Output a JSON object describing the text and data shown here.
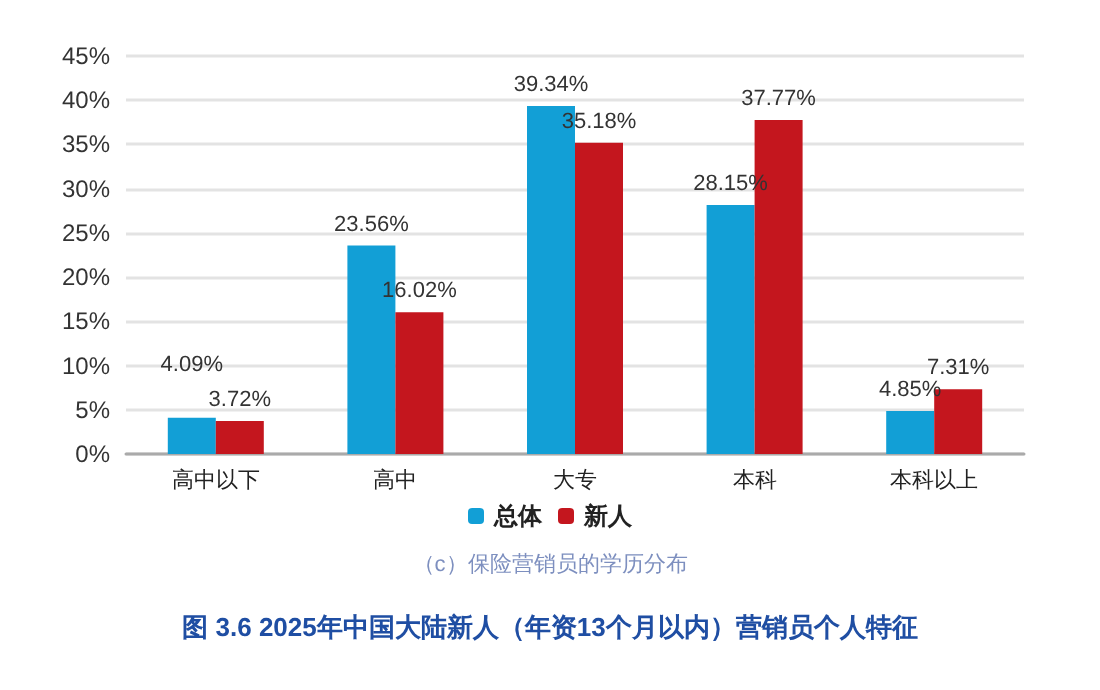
{
  "chart_data": {
    "type": "bar",
    "title": "图 3.6 2025年中国大陆新人（年资13个月以内）营销员个人特征",
    "subtitle": "（c）保险营销员的学历分布",
    "categories": [
      "高中以下",
      "高中",
      "大专",
      "本科",
      "本科以上"
    ],
    "series": [
      {
        "name": "总体",
        "color": "#129fd6",
        "values": [
          4.09,
          23.56,
          39.34,
          28.15,
          4.85
        ],
        "value_labels": [
          "4.09%",
          "23.56%",
          "39.34%",
          "28.15%",
          "4.85%"
        ]
      },
      {
        "name": "新人",
        "color": "#c4161e",
        "values": [
          3.72,
          16.02,
          35.18,
          37.77,
          7.31
        ],
        "value_labels": [
          "3.72%",
          "16.02%",
          "35.18%",
          "37.77%",
          "7.31%"
        ]
      }
    ],
    "ylim": [
      0,
      45
    ],
    "yticks": [
      {
        "value": 0,
        "label": "0%"
      },
      {
        "value": 5,
        "label": "5%"
      },
      {
        "value": 10,
        "label": "10%"
      },
      {
        "value": 15,
        "label": "15%"
      },
      {
        "value": 20,
        "label": "20%"
      },
      {
        "value": 25,
        "label": "25%"
      },
      {
        "value": 30,
        "label": "30%"
      },
      {
        "value": 35,
        "label": "35%"
      },
      {
        "value": 40,
        "label": "40%"
      },
      {
        "value": 45,
        "label": "45%"
      }
    ],
    "grid": "y",
    "legend": "bottom"
  }
}
